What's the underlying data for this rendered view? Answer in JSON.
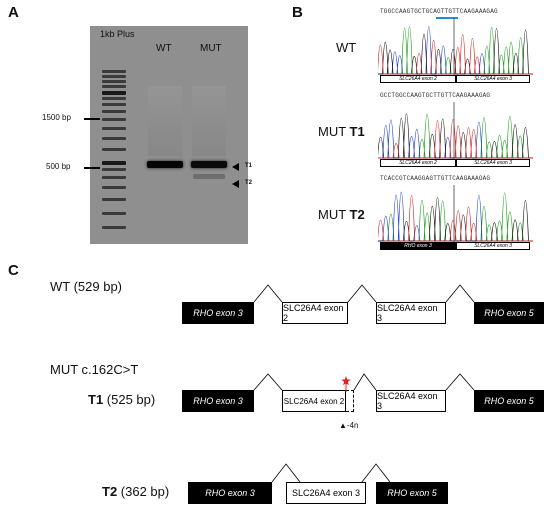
{
  "panels": {
    "A": "A",
    "B": "B",
    "C": "C"
  },
  "gel": {
    "ladder_label": "1kb Plus",
    "lane_labels": [
      "WT",
      "MUT"
    ],
    "size_labels": [
      "1500 bp",
      "500 bp"
    ],
    "band_labels": [
      "T1",
      "T2"
    ]
  },
  "chromatograms": [
    {
      "label": "WT",
      "bold_part": "",
      "sequence": "TGGCCAAGTGCTGCAGTTGTTCAAGAAAGAG",
      "exons": [
        "SLC26A4 exon 2",
        "SLC26A4 exon 3"
      ],
      "first_black": false
    },
    {
      "label": "MUT ",
      "bold_part": "T1",
      "sequence": "GCCTGGCCAAGTGCTTGTTCAAGAAAGAG",
      "exons": [
        "SLC26A4 exon 2",
        "SLC26A4 exon 3"
      ],
      "first_black": false
    },
    {
      "label": "MUT ",
      "bold_part": "T2",
      "sequence": "TCACCGTCAAGGAGTTGTTCAAGAAAGAG",
      "exons": [
        "RHO exon 3",
        "SLC26A4 exon 3"
      ],
      "first_black": true
    }
  ],
  "transcripts": {
    "wt": {
      "label": "WT (529 bp)",
      "exons": [
        "RHO exon 3",
        "SLC26A4 exon 2",
        "SLC26A4 exon 3",
        "RHO exon 5"
      ]
    },
    "mut_title": "MUT c.162C>T",
    "t1": {
      "name": "T1",
      "size": " (525 bp)",
      "exons": [
        "RHO exon 3",
        "SLC26A4 exon 2",
        "SLC26A4 exon 3",
        "RHO exon 5"
      ],
      "deletion": "-4n"
    },
    "t2": {
      "name": "T2",
      "size": " (362 bp)",
      "exons": [
        "RHO exon 3",
        "SLC26A4 exon 3",
        "RHO exon 5"
      ]
    }
  },
  "colors": {
    "A": "#1a9e1a",
    "C": "#1f3fd6",
    "G": "#111111",
    "T": "#d62020",
    "marker": "#e02020",
    "underline": "#1e8fd6"
  }
}
